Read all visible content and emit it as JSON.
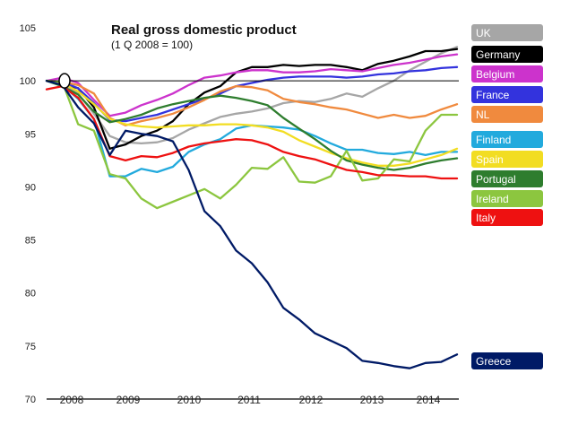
{
  "chart_data": {
    "type": "line",
    "title": "Real gross domestic product",
    "subtitle": "(1 Q 2008 = 100)",
    "xlabel": "",
    "ylabel": "",
    "x_ticks": [
      "2008",
      "2009",
      "2010",
      "2011",
      "2012",
      "2013",
      "2014"
    ],
    "y_ticks": [
      70,
      75,
      80,
      85,
      90,
      95,
      100,
      105
    ],
    "ylim": [
      70,
      105
    ],
    "x_range_quarters": [
      0,
      26
    ],
    "baseline": 100,
    "series": [
      {
        "name": "UK",
        "color": "#a6a6a6",
        "values": [
          100,
          99.8,
          98.8,
          96.9,
          94.8,
          94.2,
          94.1,
          94.2,
          94.6,
          95.4,
          96.0,
          96.6,
          96.9,
          97.1,
          97.4,
          97.9,
          98.1,
          98.0,
          98.3,
          98.8,
          98.5,
          99.3,
          100.0,
          101.0,
          101.8,
          102.6,
          103.2
        ]
      },
      {
        "name": "Germany",
        "color": "#000000",
        "values": [
          100,
          99.7,
          99.3,
          97.5,
          93.6,
          94.0,
          94.8,
          95.3,
          96.2,
          97.8,
          98.9,
          99.5,
          100.8,
          101.3,
          101.3,
          101.5,
          101.4,
          101.5,
          101.5,
          101.3,
          101.0,
          101.6,
          101.9,
          102.3,
          102.8,
          102.8,
          103.0
        ]
      },
      {
        "name": "Belgium",
        "color": "#cc33cc",
        "values": [
          100,
          100.3,
          99.8,
          98.2,
          96.7,
          97.0,
          97.7,
          98.2,
          98.8,
          99.6,
          100.3,
          100.5,
          100.8,
          101.0,
          101.0,
          100.8,
          100.8,
          100.9,
          101.1,
          101.0,
          100.9,
          101.2,
          101.5,
          101.7,
          102.0,
          102.3,
          102.5
        ]
      },
      {
        "name": "France",
        "color": "#3333dd",
        "values": [
          100,
          99.9,
          99.3,
          97.9,
          96.3,
          96.2,
          96.5,
          96.8,
          97.3,
          97.8,
          98.3,
          98.8,
          99.5,
          99.8,
          100.1,
          100.3,
          100.4,
          100.4,
          100.4,
          100.3,
          100.4,
          100.6,
          100.7,
          100.9,
          101.0,
          101.2,
          101.3
        ]
      },
      {
        "name": "NL",
        "color": "#f08a3e",
        "values": [
          100,
          99.9,
          99.6,
          98.8,
          96.5,
          95.8,
          96.2,
          96.5,
          96.9,
          97.5,
          98.2,
          99.0,
          99.5,
          99.4,
          99.1,
          98.3,
          98.0,
          97.8,
          97.5,
          97.3,
          96.9,
          96.5,
          96.8,
          96.5,
          96.7,
          97.3,
          97.8
        ]
      },
      {
        "name": "Finland",
        "color": "#22aadd",
        "values": [
          100,
          99.6,
          98.3,
          96.4,
          91.0,
          91.0,
          91.7,
          91.4,
          91.9,
          93.3,
          94.0,
          94.5,
          95.5,
          95.8,
          95.7,
          95.6,
          95.4,
          94.8,
          94.1,
          93.5,
          93.5,
          93.2,
          93.1,
          93.3,
          93.0,
          93.3,
          93.3
        ]
      },
      {
        "name": "Spain",
        "color": "#f2dd22",
        "values": [
          100,
          99.8,
          99.0,
          97.8,
          96.4,
          95.9,
          95.7,
          95.6,
          95.7,
          95.8,
          95.8,
          95.9,
          95.9,
          95.8,
          95.6,
          95.2,
          94.4,
          93.8,
          93.2,
          92.7,
          92.3,
          92.0,
          92.0,
          92.2,
          92.6,
          93.0,
          93.6
        ]
      },
      {
        "name": "Portugal",
        "color": "#2e7d2e",
        "values": [
          100,
          99.5,
          98.7,
          97.1,
          96.1,
          96.4,
          96.8,
          97.4,
          97.8,
          98.1,
          98.4,
          98.6,
          98.4,
          98.1,
          97.7,
          96.5,
          95.5,
          94.5,
          93.4,
          92.5,
          92.1,
          91.8,
          91.6,
          91.8,
          92.2,
          92.5,
          92.7
        ]
      },
      {
        "name": "Ireland",
        "color": "#8cc63f",
        "values": [
          100,
          99.9,
          95.9,
          95.3,
          91.2,
          90.8,
          88.9,
          88.0,
          88.6,
          89.2,
          89.8,
          88.9,
          90.2,
          91.8,
          91.7,
          92.8,
          90.5,
          90.4,
          91.0,
          93.4,
          90.6,
          90.8,
          92.6,
          92.4,
          95.3,
          96.8,
          96.8
        ]
      },
      {
        "name": "Italy",
        "color": "#ee1111",
        "values": [
          99.2,
          99.5,
          98.4,
          96.4,
          92.9,
          92.5,
          92.9,
          92.8,
          93.2,
          93.8,
          94.1,
          94.3,
          94.5,
          94.4,
          94.0,
          93.3,
          92.9,
          92.6,
          92.1,
          91.6,
          91.4,
          91.1,
          91.1,
          91.0,
          91.0,
          90.8,
          90.8
        ]
      },
      {
        "name": "Greece",
        "color": "#001a66",
        "values": [
          100,
          99.6,
          97.5,
          96.0,
          93.0,
          95.3,
          95.0,
          94.8,
          94.3,
          91.6,
          87.7,
          86.3,
          84.0,
          82.8,
          81.0,
          78.6,
          77.5,
          76.2,
          75.5,
          74.8,
          73.6,
          73.4,
          73.1,
          72.9,
          73.4,
          73.5,
          74.2
        ]
      }
    ],
    "legend": {
      "entries": [
        "UK",
        "Germany",
        "Belgium",
        "France",
        "NL",
        "Finland",
        "Spain",
        "Portugal",
        "Ireland",
        "Italy",
        "Greece"
      ],
      "placement": "right"
    },
    "grid": false
  }
}
